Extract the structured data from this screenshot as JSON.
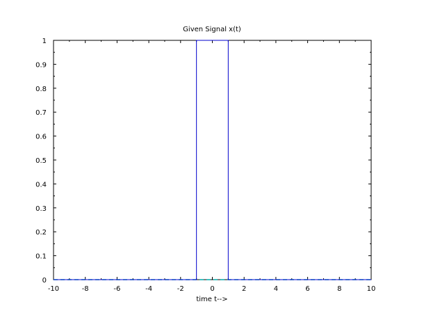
{
  "chart_data": {
    "type": "line",
    "title": "Given Signal x(t)",
    "xlabel": "time t-->",
    "ylabel": "",
    "xlim": [
      -10,
      10
    ],
    "ylim": [
      0,
      1
    ],
    "x_ticks": [
      -10,
      -8,
      -6,
      -4,
      -2,
      0,
      2,
      4,
      6,
      8,
      10
    ],
    "y_ticks": [
      0,
      0.1,
      0.2,
      0.3,
      0.4,
      0.5,
      0.6,
      0.7,
      0.8,
      0.9,
      1
    ],
    "grid": false,
    "legend": "none",
    "series": [
      {
        "color": "#0000cc",
        "x": [
          -10,
          -1,
          -1,
          1,
          1,
          10
        ],
        "y": [
          0,
          0,
          1,
          1,
          0,
          0
        ]
      }
    ],
    "baseline_color": "#00aaaa"
  }
}
